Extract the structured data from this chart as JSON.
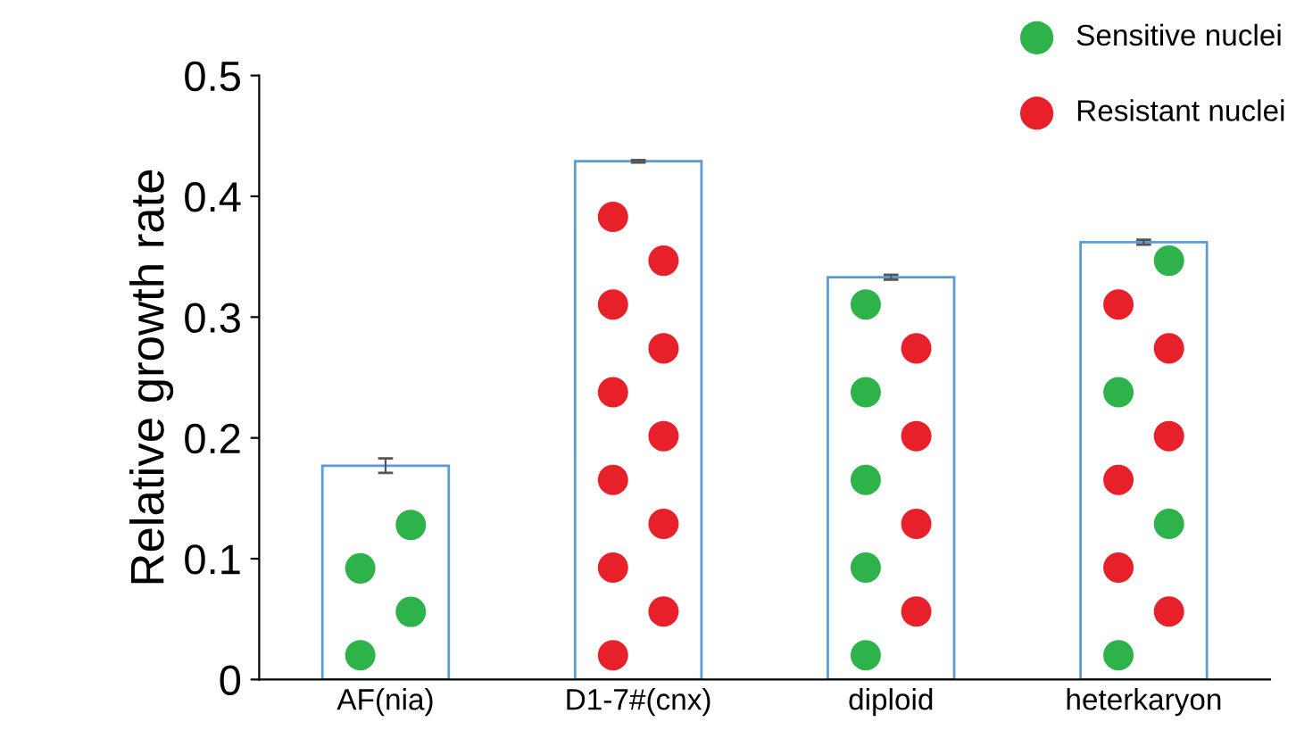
{
  "chart_data": {
    "type": "bar",
    "ylabel": "Relative growth rate",
    "categories": [
      "AF(nia)",
      "D1-7#(cnx)",
      "diploid",
      "heterkaryon"
    ],
    "values": [
      0.177,
      0.429,
      0.333,
      0.362
    ],
    "errors": [
      0.006,
      0.001,
      0.002,
      0.002
    ],
    "color": "#5b9bd5",
    "ylim": [
      0,
      0.5
    ],
    "yticks": [
      0,
      0.1,
      0.2,
      0.3,
      0.4,
      0.5
    ],
    "grid": false,
    "annotations": [
      "Sensitive nuclei",
      "Resistant nuclei"
    ]
  }
}
